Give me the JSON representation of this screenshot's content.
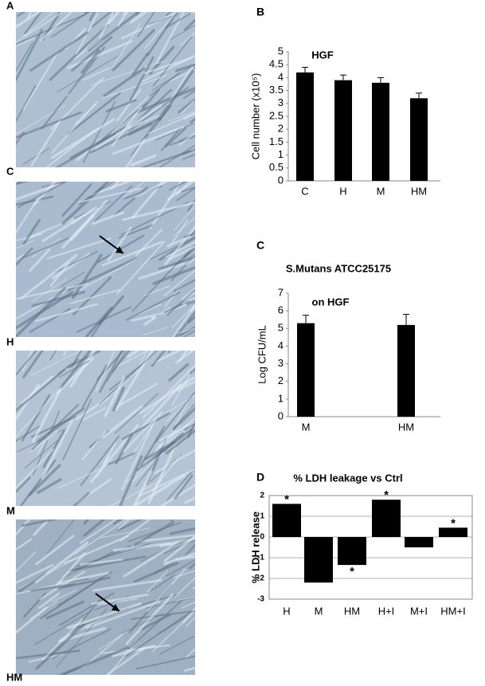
{
  "image_labels": [
    "A",
    "C",
    "H",
    "M",
    "HM"
  ],
  "chart_data": [
    {
      "type": "bar",
      "panel": "B",
      "title": "HGF",
      "ylabel": "Cell number (x10⁵)",
      "categories": [
        "C",
        "H",
        "M",
        "HM"
      ],
      "values": [
        4.2,
        3.9,
        3.8,
        3.2
      ],
      "errors": [
        0.2,
        0.2,
        0.2,
        0.2
      ],
      "color": "#000000",
      "ylim": [
        0,
        5
      ],
      "yticks": [
        0,
        0.5,
        1,
        1.5,
        2,
        2.5,
        3,
        3.5,
        4,
        4.5,
        5
      ],
      "grid": false
    },
    {
      "type": "bar",
      "panel": "C",
      "title": "S.Mutans ATCC25175",
      "subtitle": "on HGF",
      "ylabel": "Log CFU/mL",
      "categories": [
        "M",
        "HM"
      ],
      "values": [
        5.3,
        5.2
      ],
      "errors": [
        0.45,
        0.6
      ],
      "color": "#000000",
      "ylim": [
        0,
        7
      ],
      "yticks": [
        0,
        1,
        2,
        3,
        4,
        5,
        6,
        7
      ],
      "grid": false
    },
    {
      "type": "bar",
      "panel": "D",
      "title": "% LDH leakage vs Ctrl",
      "ylabel": "% LDH release",
      "categories": [
        "H",
        "M",
        "HM",
        "H+I",
        "M+I",
        "HM+I"
      ],
      "values": [
        1.6,
        -2.2,
        -1.35,
        1.8,
        -0.5,
        0.45
      ],
      "markers": [
        "*",
        null,
        "*",
        "*",
        null,
        "*"
      ],
      "color": "#000000",
      "ylim": [
        -3,
        2
      ],
      "yticks": [
        -3,
        -2,
        -1,
        0,
        1,
        2
      ],
      "grid": true
    }
  ]
}
